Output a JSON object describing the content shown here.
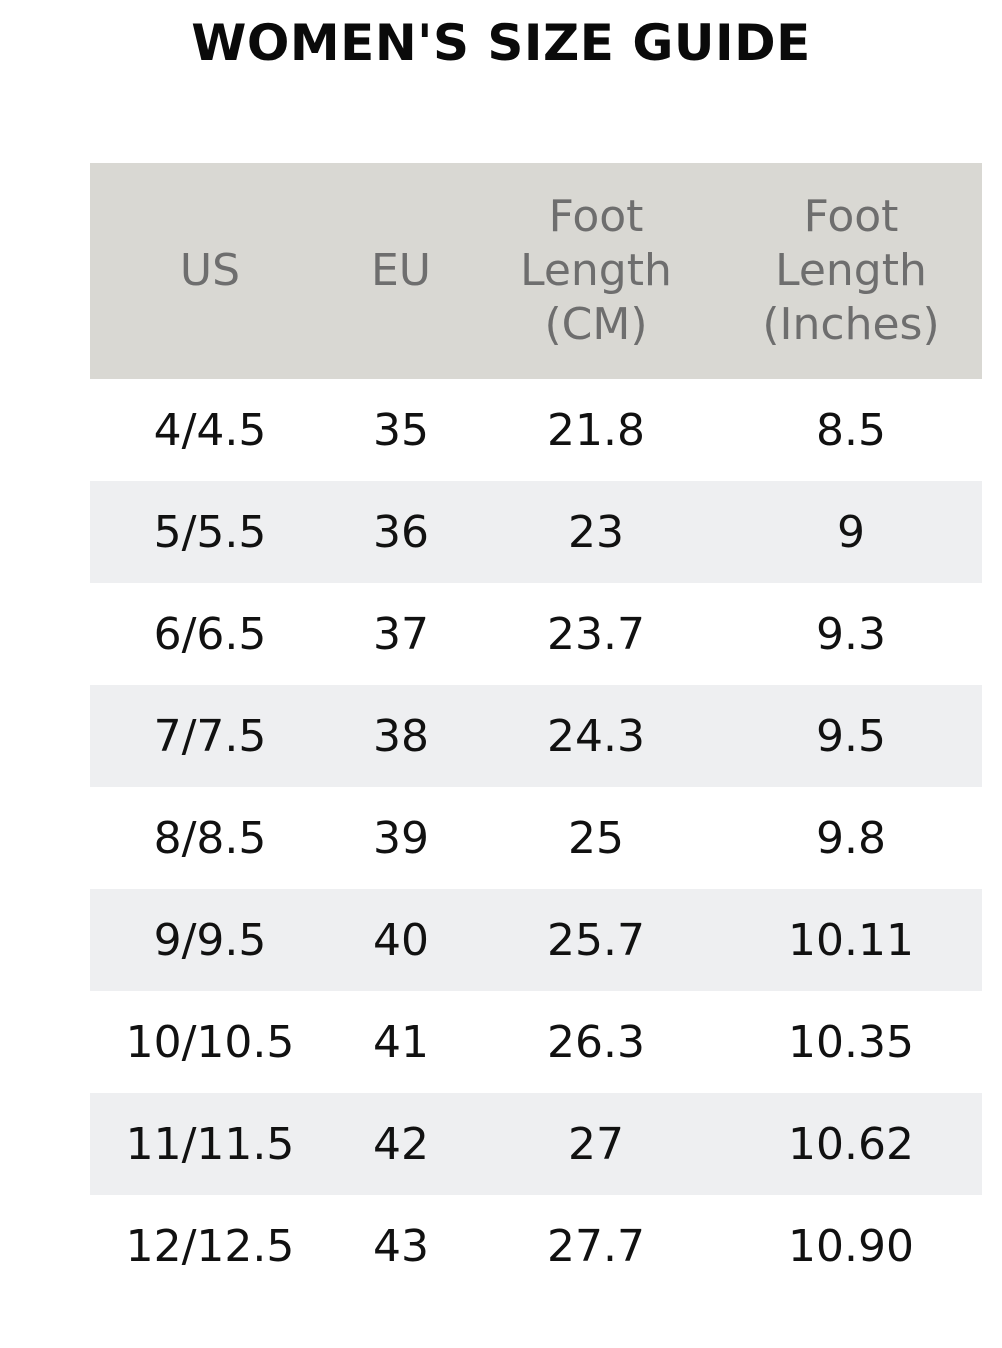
{
  "title": "WOMEN'S SIZE GUIDE",
  "colors": {
    "header_bg": "#d9d8d3",
    "header_text": "#6e6e6e",
    "stripe_bg": "#eeeff1",
    "text": "#111111"
  },
  "headers": [
    {
      "lines": [
        "US"
      ]
    },
    {
      "lines": [
        "EU"
      ]
    },
    {
      "lines": [
        "Foot",
        "Length",
        "(CM)"
      ]
    },
    {
      "lines": [
        "Foot",
        "Length",
        "(Inches)"
      ]
    }
  ],
  "rows": [
    {
      "us": "4/4.5",
      "eu": "35",
      "cm": "21.8",
      "inches": "8.5"
    },
    {
      "us": "5/5.5",
      "eu": "36",
      "cm": "23",
      "inches": "9"
    },
    {
      "us": "6/6.5",
      "eu": "37",
      "cm": "23.7",
      "inches": "9.3"
    },
    {
      "us": "7/7.5",
      "eu": "38",
      "cm": "24.3",
      "inches": "9.5"
    },
    {
      "us": "8/8.5",
      "eu": "39",
      "cm": "25",
      "inches": "9.8"
    },
    {
      "us": "9/9.5",
      "eu": "40",
      "cm": "25.7",
      "inches": "10.11"
    },
    {
      "us": "10/10.5",
      "eu": "41",
      "cm": "26.3",
      "inches": "10.35"
    },
    {
      "us": "11/11.5",
      "eu": "42",
      "cm": "27",
      "inches": "10.62"
    },
    {
      "us": "12/12.5",
      "eu": "43",
      "cm": "27.7",
      "inches": "10.90"
    }
  ]
}
